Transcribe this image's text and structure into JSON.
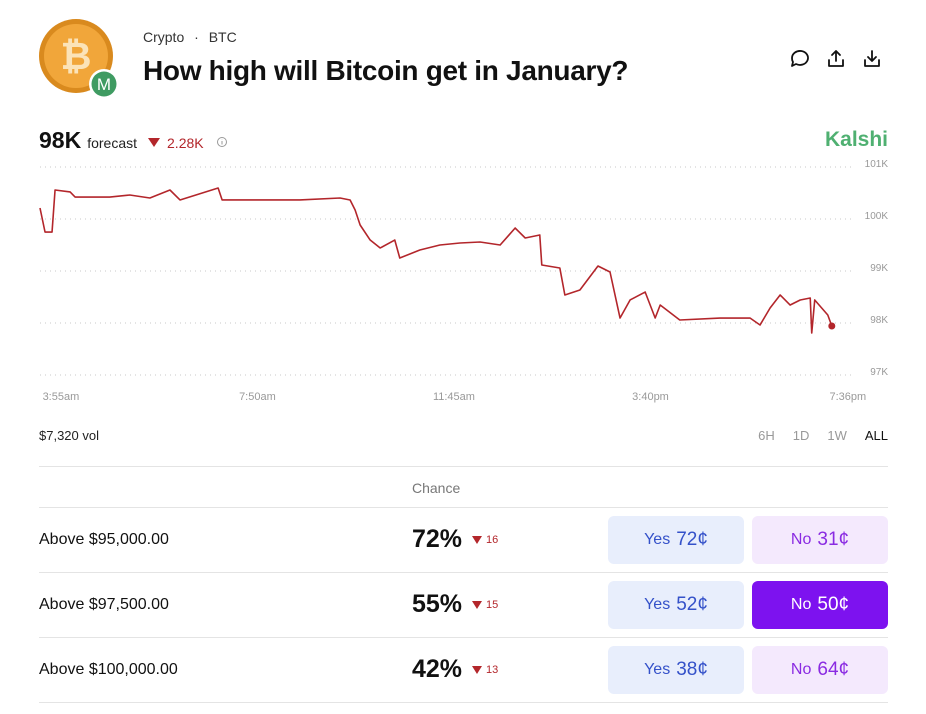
{
  "header": {
    "breadcrumb": [
      "Crypto",
      "BTC"
    ],
    "separator": "·",
    "title": "How high will Bitcoin get in January?",
    "avatar_badge": "M",
    "logo_letter": "₿"
  },
  "forecast": {
    "value": "98K",
    "label": "forecast",
    "change": "2.28K"
  },
  "brand": "Kalshi",
  "chart_data": {
    "type": "line",
    "x": [
      3.5,
      3.6,
      3.74,
      3.8,
      4.1,
      4.2,
      4.89,
      5.29,
      5.69,
      6.09,
      6.29,
      7.05,
      7.13,
      8.68,
      9.48,
      9.68,
      9.78,
      9.88,
      10.08,
      10.28,
      10.57,
      10.67,
      11.07,
      11.47,
      11.87,
      12.27,
      12.67,
      12.97,
      13.17,
      13.46,
      13.5,
      13.86,
      13.96,
      14.26,
      14.62,
      14.86,
      15.06,
      15.26,
      15.56,
      15.76,
      15.86,
      16.25,
      17.05,
      17.65,
      17.85,
      18.05,
      18.25,
      18.45,
      18.65,
      18.85,
      18.88,
      18.94,
      19.2,
      19.28
    ],
    "series": [
      {
        "color": "#b3262b",
        "values": [
          100154,
          99692,
          99692,
          100500,
          100462,
          100365,
          100365,
          100404,
          100346,
          100500,
          100308,
          100538,
          100308,
          100308,
          100346,
          100308,
          100115,
          99827,
          99538,
          99385,
          99538,
          99192,
          99346,
          99442,
          99481,
          99500,
          99442,
          99769,
          99577,
          99635,
          99058,
          99000,
          98481,
          98577,
          99038,
          98923,
          98038,
          98385,
          98538,
          98038,
          98288,
          98000,
          98038,
          98038,
          97904,
          98231,
          98481,
          98288,
          98385,
          98423,
          97750,
          98385,
          98096,
          97885
        ]
      }
    ],
    "xlim": [
      3.5,
      20.4
    ],
    "xticks": [
      {
        "value": 3.917,
        "label": "3:55am"
      },
      {
        "value": 7.833,
        "label": "7:50am"
      },
      {
        "value": 11.75,
        "label": "11:45am"
      },
      {
        "value": 15.667,
        "label": "3:40pm"
      },
      {
        "value": 19.6,
        "label": "7:36pm"
      }
    ],
    "ylim": [
      97000,
      101000
    ],
    "yticks": [
      {
        "value": 97000,
        "label": "97K"
      },
      {
        "value": 98000,
        "label": "98K"
      },
      {
        "value": 99000,
        "label": "99K"
      },
      {
        "value": 100000,
        "label": "100K"
      },
      {
        "value": 101000,
        "label": "101K"
      }
    ],
    "grid": true
  },
  "volume": "$7,320 vol",
  "ranges": [
    "6H",
    "1D",
    "1W",
    "ALL"
  ],
  "table": {
    "header": "Chance",
    "rows": [
      {
        "label": "Above $95,000.00",
        "chance": "72%",
        "change": "16",
        "yes": {
          "label": "Yes",
          "price": "72¢"
        },
        "no": {
          "label": "No",
          "price": "31¢"
        }
      },
      {
        "label": "Above $97,500.00",
        "chance": "55%",
        "change": "15",
        "yes": {
          "label": "Yes",
          "price": "52¢"
        },
        "no": {
          "label": "No",
          "price": "50¢"
        }
      },
      {
        "label": "Above $100,000.00",
        "chance": "42%",
        "change": "13",
        "yes": {
          "label": "Yes",
          "price": "38¢"
        },
        "no": {
          "label": "No",
          "price": "64¢"
        }
      }
    ]
  }
}
